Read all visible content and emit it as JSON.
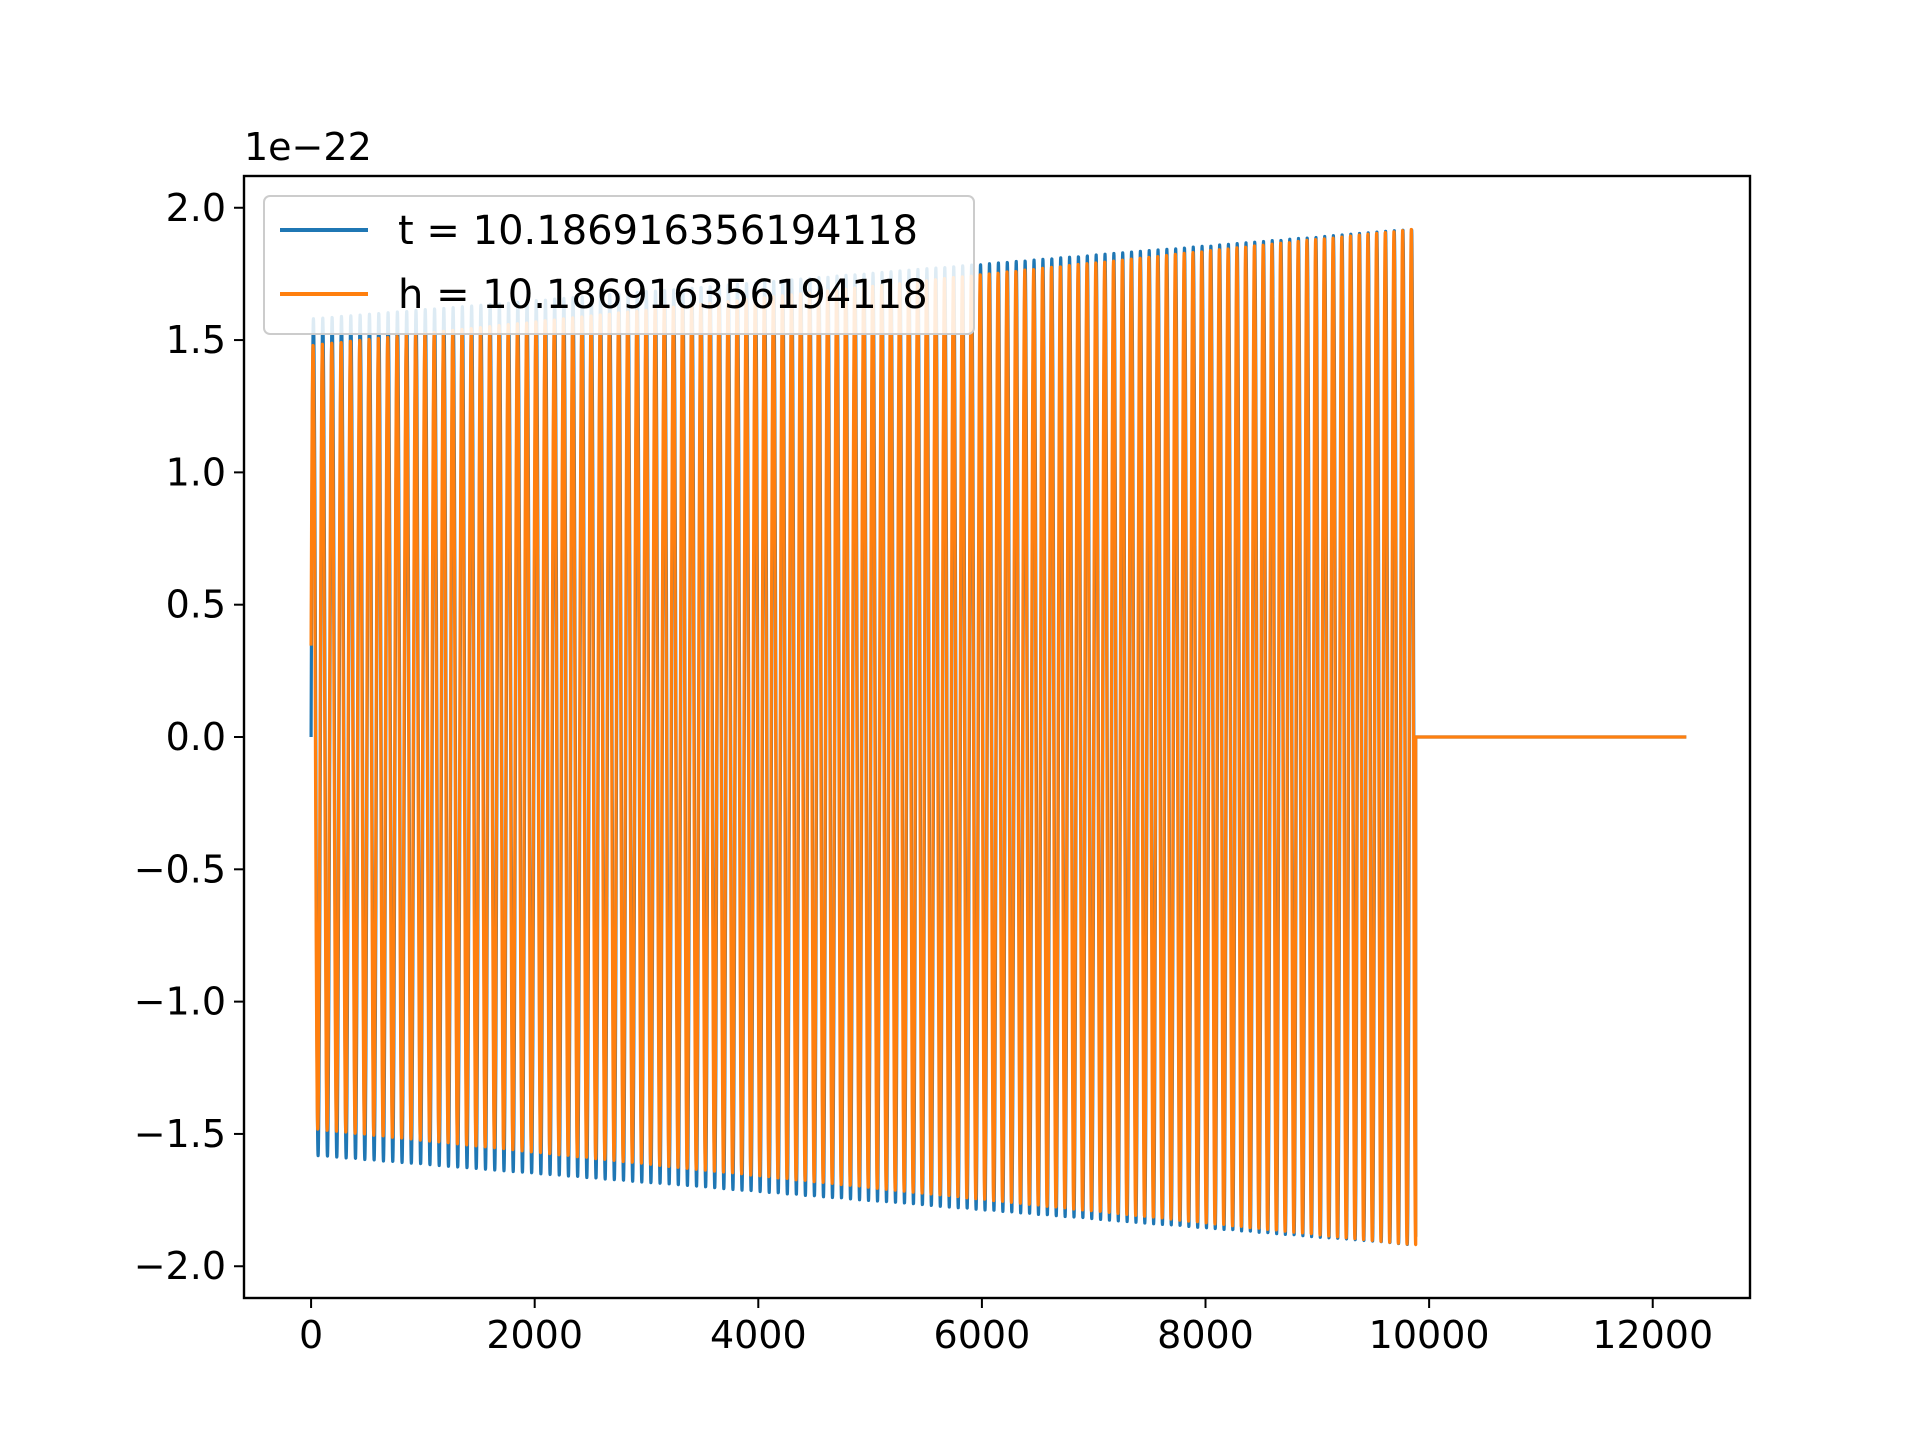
{
  "chart_data": {
    "type": "line",
    "title": "",
    "xlabel": "",
    "ylabel": "",
    "y_offset_text": "1e−22",
    "xlim": [
      -600,
      12870
    ],
    "ylim": [
      -2.12,
      2.12
    ],
    "xticks": [
      0,
      2000,
      4000,
      6000,
      8000,
      10000,
      12000
    ],
    "xtick_labels": [
      "0",
      "2000",
      "4000",
      "6000",
      "8000",
      "10000",
      "12000"
    ],
    "yticks": [
      -2.0,
      -1.5,
      -1.0,
      -0.5,
      0.0,
      0.5,
      1.0,
      1.5,
      2.0
    ],
    "ytick_labels": [
      "−2.0",
      "−1.5",
      "−1.0",
      "−0.5",
      "0.0",
      "0.5",
      "1.0",
      "1.5",
      "2.0"
    ],
    "grid": false,
    "legend_position": "upper-left",
    "series": [
      {
        "name": "t = 10.186916356194118",
        "color": "#1f77b4",
        "kind": "chirp",
        "x_start": 0,
        "x_end": 9880,
        "amplitude_start": 1.58,
        "amplitude_end": 1.92,
        "cycles": 118,
        "tail_end_x": 12300,
        "tail_value": 0.0
      },
      {
        "name": "h = 10.186916356194118",
        "color": "#ff7f0e",
        "kind": "chirp",
        "x_start": 0,
        "x_end": 9880,
        "amplitude_start": 1.48,
        "amplitude_end": 1.92,
        "cycles": 118,
        "tail_end_x": 12300,
        "tail_value": 0.0
      }
    ]
  }
}
